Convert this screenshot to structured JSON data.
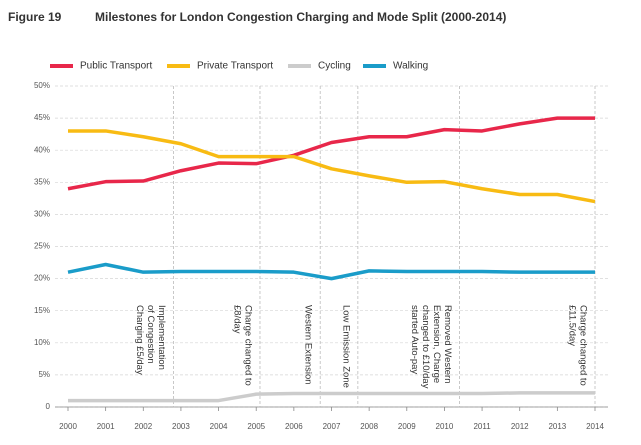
{
  "chart_data": {
    "type": "line",
    "figure_label": "Figure 19",
    "title": "Milestones for London Congestion Charging and Mode Split (2000-2014)",
    "x": [
      2000,
      2001,
      2002,
      2003,
      2004,
      2005,
      2006,
      2007,
      2008,
      2009,
      2010,
      2011,
      2012,
      2013,
      2014
    ],
    "xlim": [
      2000,
      2014
    ],
    "xticks": [
      2000,
      2001,
      2002,
      2003,
      2004,
      2005,
      2006,
      2007,
      2008,
      2009,
      2010,
      2011,
      2012,
      2013,
      2014
    ],
    "ylim": [
      0,
      50
    ],
    "yticks": [
      0,
      {
        "value": 5,
        "label": "5%"
      },
      {
        "value": 10,
        "label": "10%"
      },
      {
        "value": 15,
        "label": "15%"
      },
      {
        "value": 20,
        "label": "20%"
      },
      {
        "value": 25,
        "label": "25%"
      },
      {
        "value": 30,
        "label": "30%"
      },
      {
        "value": 35,
        "label": "35%"
      },
      {
        "value": 40,
        "label": "40%"
      },
      {
        "value": 45,
        "label": "45%"
      },
      {
        "value": 50,
        "label": "50%"
      }
    ],
    "grid": true,
    "legend": "top",
    "series": [
      {
        "name": "Public Transport",
        "color": "#e8274a",
        "values": [
          34,
          35.1,
          35.2,
          36.8,
          38,
          37.9,
          39.2,
          41.2,
          42.1,
          42.1,
          43.2,
          43,
          44.1,
          45,
          45
        ]
      },
      {
        "name": "Private Transport",
        "color": "#f8bb13",
        "values": [
          43,
          43,
          42.1,
          41,
          39,
          39,
          39,
          37.1,
          36,
          35,
          35.1,
          34,
          33.1,
          33.1,
          32
        ]
      },
      {
        "name": "Cycling",
        "color": "#cccccc",
        "values": [
          1,
          1,
          1,
          1,
          1,
          2,
          2.1,
          2.1,
          2.1,
          2.1,
          2.1,
          2.1,
          2.2,
          2.2,
          2.2
        ]
      },
      {
        "name": "Walking",
        "color": "#1a9cc9",
        "values": [
          21,
          22.2,
          21,
          21.1,
          21.1,
          21.1,
          21,
          20,
          21.2,
          21.1,
          21.1,
          21.1,
          21,
          21,
          21
        ]
      }
    ],
    "annotations": [
      {
        "x": 2002.8,
        "lines": [
          "Implementation",
          "of Congestion",
          "Charging £5/day"
        ]
      },
      {
        "x": 2005.1,
        "lines": [
          "Charge changed to",
          "£8/day"
        ]
      },
      {
        "x": 2006.7,
        "lines": [
          "Western Extension"
        ]
      },
      {
        "x": 2007.7,
        "lines": [
          "Low Emission Zone"
        ]
      },
      {
        "x": 2010.4,
        "lines": [
          "Removed Western",
          "Extension, Charge",
          "changed to £10/day",
          "started Auto-pay"
        ]
      },
      {
        "x": 2014,
        "lines": [
          "Charge changed to",
          "£11.5/day"
        ]
      }
    ]
  }
}
